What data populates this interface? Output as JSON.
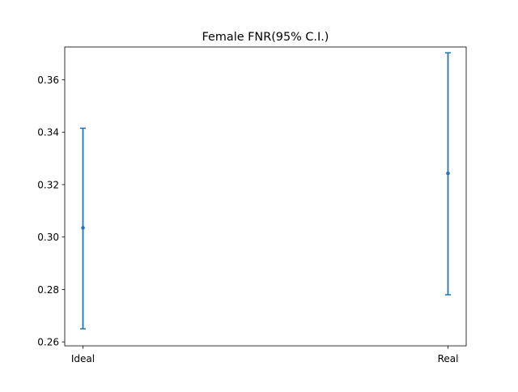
{
  "chart_data": {
    "type": "errorbar",
    "title": "Female FNR(95% C.I.)",
    "xlabel": "",
    "ylabel": "",
    "categories": [
      "Ideal",
      "Real"
    ],
    "series": [
      {
        "color": "#1f77b4",
        "points": [
          {
            "x": "Ideal",
            "y": 0.3035,
            "lower": 0.265,
            "upper": 0.3415
          },
          {
            "x": "Real",
            "y": 0.3243,
            "lower": 0.278,
            "upper": 0.3703
          }
        ]
      }
    ],
    "ylim": [
      0.2585,
      0.3725
    ],
    "yticks": [
      0.26,
      0.28,
      0.3,
      0.32,
      0.34,
      0.36
    ],
    "ytick_labels": [
      "0.26",
      "0.28",
      "0.30",
      "0.32",
      "0.34",
      "0.36"
    ],
    "grid": false,
    "legend": "none"
  }
}
